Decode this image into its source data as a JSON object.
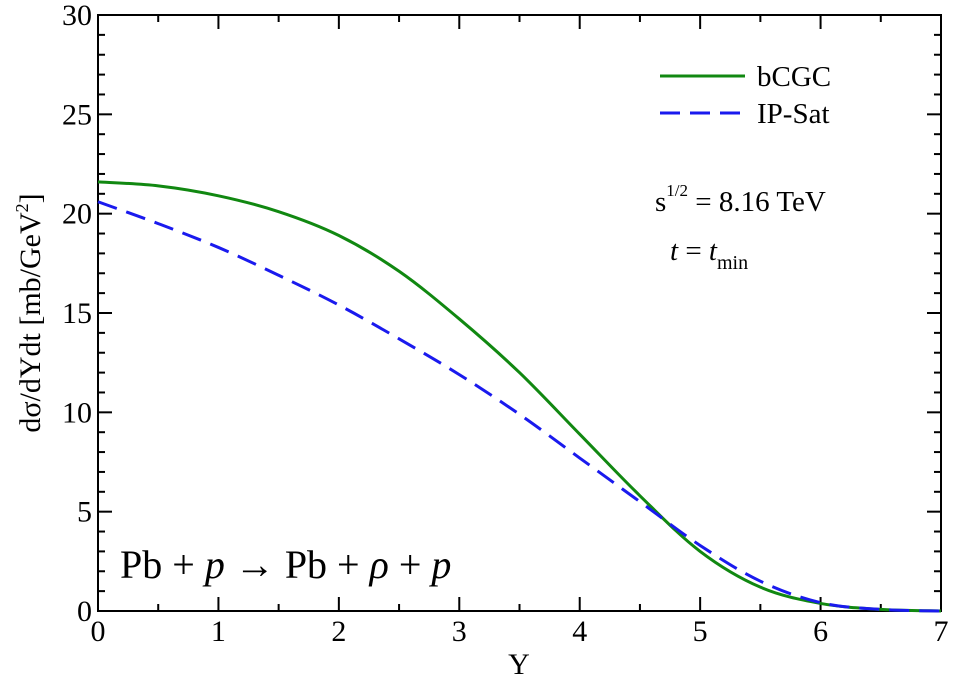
{
  "chart_data": {
    "type": "line",
    "xlabel": "Y",
    "ylabel": "dσ/dYdt [mb/GeV",
    "ylabel_sup": "2",
    "ylabel_close": "]",
    "xlim": [
      0,
      7
    ],
    "ylim": [
      0,
      30
    ],
    "x_ticks": [
      "0",
      "1",
      "2",
      "3",
      "4",
      "5",
      "6",
      "7"
    ],
    "y_ticks": [
      "0",
      "5",
      "10",
      "15",
      "20",
      "25",
      "30"
    ],
    "grid": false,
    "legend_position": "top-right",
    "series": [
      {
        "name": "bCGC",
        "color": "#118811",
        "style": "solid",
        "x": [
          0,
          0.5,
          1,
          1.5,
          2,
          2.5,
          3,
          3.5,
          4,
          4.5,
          5,
          5.5,
          6,
          6.5,
          7
        ],
        "y": [
          21.6,
          21.4,
          20.9,
          20.1,
          18.9,
          17.1,
          14.7,
          12.0,
          8.9,
          5.8,
          3.0,
          1.2,
          0.38,
          0.08,
          0.0
        ]
      },
      {
        "name": "IP-Sat",
        "color": "#1a1aee",
        "style": "dashed",
        "x": [
          0,
          0.5,
          1,
          1.5,
          2,
          2.5,
          3,
          3.5,
          4,
          4.5,
          5,
          5.5,
          6,
          6.5,
          7
        ],
        "y": [
          20.6,
          19.5,
          18.3,
          16.9,
          15.4,
          13.7,
          11.9,
          9.9,
          7.7,
          5.5,
          3.3,
          1.5,
          0.42,
          0.08,
          0.0
        ]
      }
    ],
    "annotations": {
      "energy_prefix": "s",
      "energy_sup": "1/2",
      "energy_value": " = 8.16 TeV",
      "t_var": "t",
      "t_eq": " = ",
      "t_min_var": "t",
      "t_min_sub": "min",
      "reaction_a": "Pb + ",
      "reaction_p1": "p",
      "reaction_arrow": " → Pb + ",
      "reaction_rho": "ρ",
      "reaction_plus": " + ",
      "reaction_p2": "p"
    }
  }
}
